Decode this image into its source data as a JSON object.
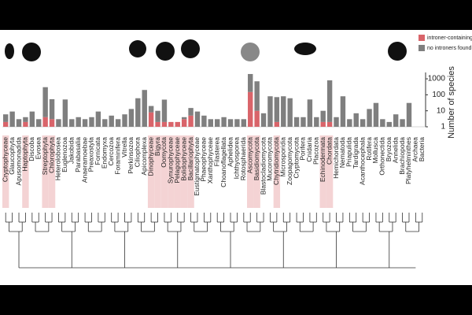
{
  "chart_data": {
    "type": "bar",
    "y_label": "Number of species",
    "log_scale": true,
    "ylim": [
      1,
      2500
    ],
    "yticks": [
      1,
      10,
      100,
      1000
    ],
    "legend_position": "upper right",
    "categories": [
      "Cryptophyceae",
      "Glaucophyta",
      "Apusomonadida",
      "Haptophyta",
      "Discoba",
      "Evosea",
      "Streptophyta",
      "Chlorophyta",
      "Heterolobosea",
      "Euglenozoa",
      "Jakobida",
      "Parabasalia",
      "Anaeramoebae",
      "Preaxostyla",
      "Fornicata",
      "Endomyxa",
      "Cercozoa",
      "Foraminifera",
      "Vitrella",
      "Perkinsozoa",
      "Ciliophora",
      "Apicomplexa",
      "Dinophyceae",
      "Bigyra",
      "Oomycota",
      "Synurophyceae",
      "Pelagophyceae",
      "Bolidophyceae",
      "Bacillariophyta",
      "Eustigmatophyceae",
      "Phaeophyceae",
      "Xanthophyceae",
      "Filasterea",
      "Choanoflagellata",
      "Aphelidea",
      "Ichthyosporea",
      "Rotosphaerida",
      "Ascomycota",
      "Basidiomycota",
      "Blastocladiomycota",
      "Mucoromycota",
      "Chytridiomycota",
      "Microsporidia",
      "Zoopagomycota",
      "Cryptomycota",
      "Porifera",
      "Cnidaria",
      "Placozoa",
      "Echinodermata",
      "Chordata",
      "Hemichordata",
      "Nematoda",
      "Priapulida",
      "Tardigrada",
      "Acanthocephala",
      "Rotifera",
      "Mollusca",
      "Orthonectida",
      "Bryozoa",
      "Annelida",
      "Brachiopoda",
      "Platyhelminthes",
      "Archaea",
      "Bacteria"
    ],
    "series": [
      {
        "name": "introner-containing",
        "color": "#d9646a",
        "values": [
          2,
          null,
          null,
          2,
          null,
          null,
          4,
          3,
          null,
          null,
          null,
          null,
          null,
          null,
          null,
          null,
          null,
          null,
          null,
          null,
          null,
          null,
          8,
          2,
          2,
          2,
          2,
          3,
          5,
          null,
          null,
          null,
          null,
          null,
          null,
          null,
          null,
          150,
          10,
          null,
          null,
          2,
          null,
          null,
          null,
          null,
          null,
          null,
          2,
          2,
          null,
          null,
          null,
          null,
          null,
          null,
          null,
          null,
          null,
          null,
          null,
          null,
          null,
          null
        ]
      },
      {
        "name": "no introners found",
        "color": "#7f7f7f",
        "values": [
          4,
          8,
          2,
          2,
          8,
          2,
          296,
          50,
          2,
          50,
          2,
          3,
          2,
          3,
          8,
          2,
          4,
          2,
          5,
          12,
          60,
          200,
          12,
          8,
          48,
          null,
          null,
          1,
          10,
          8,
          4,
          2,
          2,
          3,
          2,
          2,
          2,
          1850,
          690,
          6,
          80,
          70,
          80,
          60,
          3,
          3,
          50,
          3,
          8,
          800,
          3,
          80,
          2,
          6,
          2,
          12,
          30,
          2,
          1,
          5,
          2,
          30,
          null,
          null
        ]
      }
    ]
  }
}
